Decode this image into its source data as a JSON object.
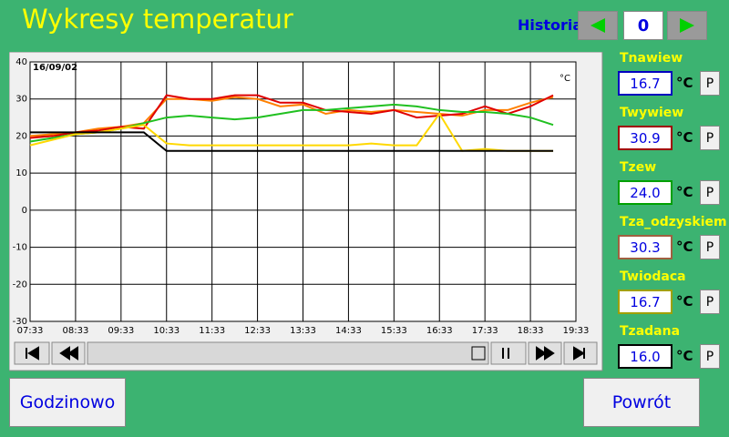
{
  "header": {
    "title": "Wykresy temperatur",
    "history_label": "Historia",
    "history_index": "0"
  },
  "chart_data": {
    "type": "line",
    "date_label": "16/09/02",
    "unit_label": "°C",
    "x": [
      7.55,
      8.05,
      8.55,
      9.05,
      9.55,
      10.05,
      10.55,
      11.05,
      11.55,
      12.05,
      12.55,
      13.05,
      13.55,
      14.05,
      14.55,
      15.05,
      15.55,
      16.05,
      16.55,
      17.05,
      17.55,
      18.05,
      18.55,
      19.05
    ],
    "xlim": [
      7.55,
      19.55
    ],
    "xticks": [
      {
        "value": 7.55,
        "label": "07:33"
      },
      {
        "value": 8.55,
        "label": "08:33"
      },
      {
        "value": 9.55,
        "label": "09:33"
      },
      {
        "value": 10.55,
        "label": "10:33"
      },
      {
        "value": 11.55,
        "label": "11:33"
      },
      {
        "value": 12.55,
        "label": "12:33"
      },
      {
        "value": 13.55,
        "label": "13:33"
      },
      {
        "value": 14.55,
        "label": "14:33"
      },
      {
        "value": 15.55,
        "label": "15:33"
      },
      {
        "value": 16.55,
        "label": "16:33"
      },
      {
        "value": 17.55,
        "label": "17:33"
      },
      {
        "value": 18.55,
        "label": "18:33"
      },
      {
        "value": 19.55,
        "label": "19:33"
      }
    ],
    "ylim": [
      -30,
      40
    ],
    "yticks": [
      -30,
      -20,
      -10,
      0,
      10,
      20,
      30,
      40
    ],
    "grid": true,
    "series": [
      {
        "color": "#ff8000",
        "values": [
          20,
          20.5,
          21,
          22,
          22.5,
          23.5,
          30,
          30,
          29.5,
          30.5,
          30,
          28,
          28.5,
          26,
          27,
          26.5,
          27,
          26.5,
          26,
          25.5,
          27,
          27,
          29,
          30.5
        ]
      },
      {
        "color": "#e00000",
        "values": [
          19.5,
          20,
          21,
          21.5,
          22.5,
          22,
          31,
          30,
          30,
          31,
          31,
          29,
          29,
          27,
          26.5,
          26,
          27,
          25,
          25.5,
          26,
          28,
          26,
          28,
          31
        ]
      },
      {
        "color": "#20c020",
        "values": [
          18.5,
          19.5,
          20.5,
          21,
          22,
          23.5,
          25,
          25.5,
          25,
          24.5,
          25,
          26,
          27,
          27,
          27.5,
          28,
          28.5,
          28,
          27,
          26.5,
          26.5,
          26,
          25,
          23
        ]
      },
      {
        "color": "#ffd800",
        "values": [
          17.5,
          19,
          20.5,
          21,
          22,
          23,
          18,
          17.5,
          17.5,
          17.5,
          17.5,
          17.5,
          17.5,
          17.5,
          17.5,
          18,
          17.5,
          17.5,
          26,
          16,
          16.5,
          16,
          16,
          16
        ]
      },
      {
        "color": "#000000",
        "values": [
          21,
          21,
          21,
          21,
          21,
          21,
          16,
          16,
          16,
          16,
          16,
          16,
          16,
          16,
          16,
          16,
          16,
          16,
          16,
          16,
          16,
          16,
          16,
          16
        ]
      }
    ]
  },
  "sensors": [
    {
      "name": "Tnawiew",
      "value": "16.7",
      "unit": "°C",
      "button": "P",
      "border": "#0000c0"
    },
    {
      "name": "Twywiew",
      "value": "30.9",
      "unit": "°C",
      "button": "P",
      "border": "#a00000"
    },
    {
      "name": "Tzew",
      "value": "24.0",
      "unit": "°C",
      "button": "P",
      "border": "#00a000"
    },
    {
      "name": "Tza_odzyskiem",
      "value": "30.3",
      "unit": "°C",
      "button": "P",
      "border": "#a06040"
    },
    {
      "name": "Twiodaca",
      "value": "16.7",
      "unit": "°C",
      "button": "P",
      "border": "#a0a000"
    },
    {
      "name": "Tzadana",
      "value": "16.0",
      "unit": "°C",
      "button": "P",
      "border": "#000000"
    }
  ],
  "buttons": {
    "left": "Godzinowo",
    "right": "Powrót"
  }
}
